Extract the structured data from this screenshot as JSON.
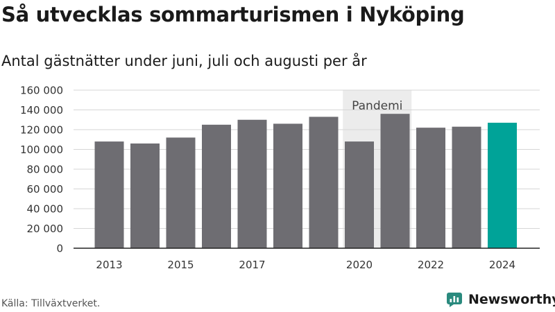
{
  "header": {
    "title": "Så utvecklas sommarturismen i Nyköping",
    "subtitle": "Antal gästnätter under juni, juli och augusti per år"
  },
  "footer": {
    "source": "Källa: Tillväxtverket.",
    "brand": "Newsworthy"
  },
  "colors": {
    "bar": "#6e6d72",
    "highlight": "#00a398",
    "shade": "#ececec",
    "brand": "#2a8a7e"
  },
  "icons": {
    "brand_logo": "newsworthy-chat-bars-icon"
  },
  "chart_data": {
    "type": "bar",
    "title": "Så utvecklas sommarturismen i Nyköping",
    "subtitle": "Antal gästnätter under juni, juli och augusti per år",
    "categories": [
      "2013",
      "2014",
      "2015",
      "2016",
      "2017",
      "2018",
      "2019",
      "2020",
      "2021",
      "2022",
      "2023",
      "2024"
    ],
    "x_tick_labels": [
      "2013",
      "",
      "2015",
      "",
      "2017",
      "",
      "",
      "2020",
      "",
      "2022",
      "",
      "2024"
    ],
    "values": [
      108000,
      106000,
      112000,
      125000,
      130000,
      126000,
      133000,
      108000,
      136000,
      122000,
      123000,
      127000
    ],
    "highlight": "2024",
    "ylim": [
      0,
      160000
    ],
    "yticks": [
      0,
      20000,
      40000,
      60000,
      80000,
      100000,
      120000,
      140000,
      160000
    ],
    "ytick_labels": [
      "0",
      "20 000",
      "40 000",
      "60 000",
      "80 000",
      "100 000",
      "120 000",
      "140 000",
      "160 000"
    ],
    "grid": true,
    "shaded_region": {
      "from": "2020",
      "to": "2021",
      "label": "Pandemi"
    },
    "xlabel": "",
    "ylabel": ""
  }
}
